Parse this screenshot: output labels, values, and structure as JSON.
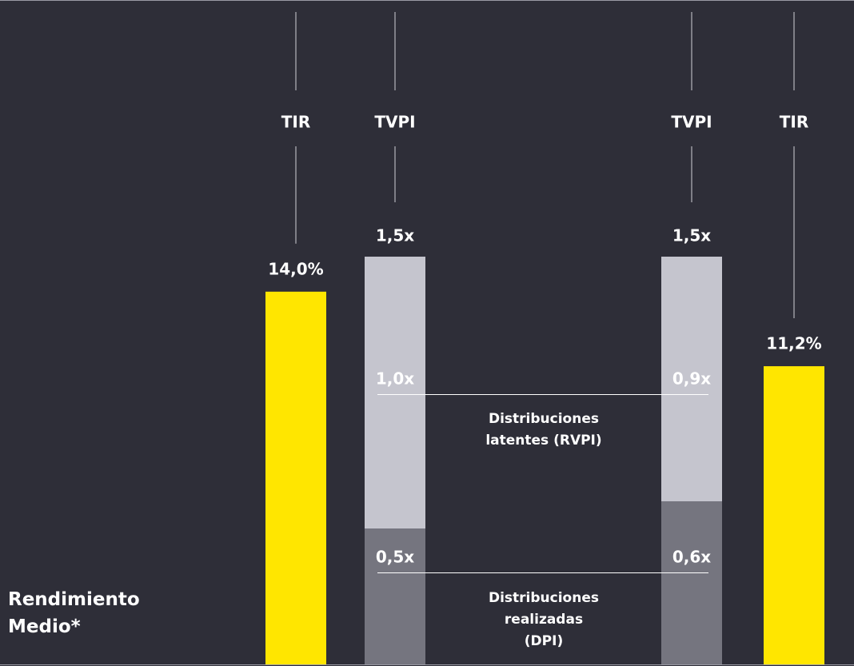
{
  "chart_data": [
    {
      "type": "bar",
      "title": "Rendimiento Medio*",
      "categories": [
        "TIR",
        "TIR"
      ],
      "values": [
        14.0,
        11.2
      ],
      "value_labels": [
        "14,0%",
        "11,2%"
      ],
      "color": "#ffe600"
    },
    {
      "type": "stacked-bar",
      "categories": [
        "TVPI",
        "TVPI"
      ],
      "series": [
        {
          "name": "Distribuciones realizadas (DPI)",
          "color": "#75757f",
          "values": [
            0.5,
            0.6
          ],
          "value_labels": [
            "0,5x",
            "0,6x"
          ]
        },
        {
          "name": "Distribuciones latentes (RVPI)",
          "color": "#c5c5ce",
          "values": [
            1.0,
            0.9
          ],
          "value_labels": [
            "1,0x",
            "0,9x"
          ]
        }
      ],
      "totals": [
        1.5,
        1.5
      ],
      "total_labels": [
        "1,5x",
        "1,5x"
      ]
    }
  ]
}
